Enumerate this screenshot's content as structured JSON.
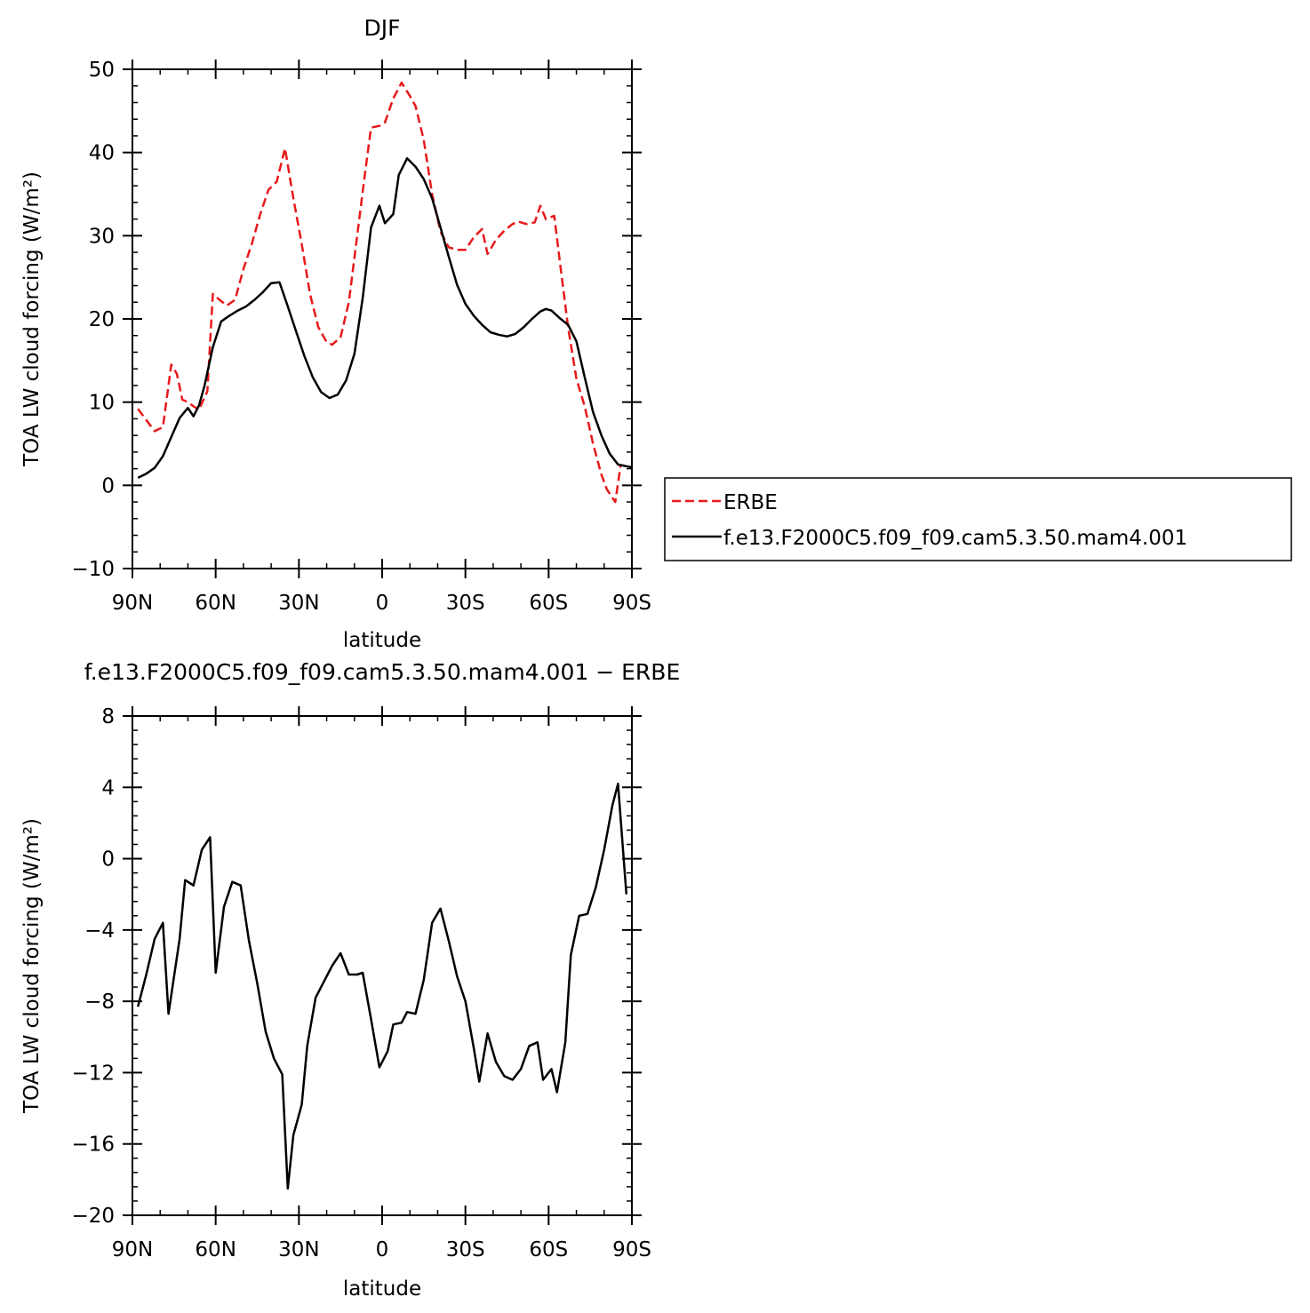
{
  "chart_data": [
    {
      "type": "line",
      "title": "DJF",
      "xlabel": "latitude",
      "ylabel": "TOA LW cloud forcing (W/m²)",
      "xlim": [
        -90,
        90
      ],
      "ylim": [
        -10,
        50
      ],
      "xticks": [
        {
          "value": -90,
          "label": "90N"
        },
        {
          "value": -60,
          "label": "60N"
        },
        {
          "value": -30,
          "label": "30N"
        },
        {
          "value": 0,
          "label": "0"
        },
        {
          "value": 30,
          "label": "30S"
        },
        {
          "value": 60,
          "label": "60S"
        },
        {
          "value": 90,
          "label": "90S"
        }
      ],
      "yticks": [
        -10,
        0,
        10,
        20,
        30,
        40,
        50
      ],
      "legend": {
        "placement": "right"
      },
      "series": [
        {
          "name": "ERBE",
          "color": "#e8191b",
          "dash": "dashed",
          "points": [
            [
              -88,
              9.2
            ],
            [
              -86,
              8.3
            ],
            [
              -82,
              6.5
            ],
            [
              -79,
              7.0
            ],
            [
              -76,
              14.5
            ],
            [
              -74,
              13.4
            ],
            [
              -72,
              10.3
            ],
            [
              -70,
              10.0
            ],
            [
              -68,
              9.5
            ],
            [
              -66,
              9.1
            ],
            [
              -63,
              11.3
            ],
            [
              -61,
              23.0
            ],
            [
              -59,
              22.4
            ],
            [
              -56,
              21.6
            ],
            [
              -53,
              22.3
            ],
            [
              -50,
              26.0
            ],
            [
              -47,
              29.0
            ],
            [
              -44,
              32.5
            ],
            [
              -41,
              35.5
            ],
            [
              -38,
              36.5
            ],
            [
              -35,
              40.5
            ],
            [
              -32,
              34.5
            ],
            [
              -29,
              29.0
            ],
            [
              -26,
              23.0
            ],
            [
              -23,
              19.0
            ],
            [
              -20,
              17.2
            ],
            [
              -18,
              16.9
            ],
            [
              -15,
              17.8
            ],
            [
              -12,
              22.0
            ],
            [
              -9,
              30.0
            ],
            [
              -6,
              38.0
            ],
            [
              -4,
              43.0
            ],
            [
              -1,
              43.2
            ],
            [
              1,
              43.6
            ],
            [
              4,
              46.5
            ],
            [
              7,
              48.4
            ],
            [
              10,
              46.8
            ],
            [
              12,
              45.6
            ],
            [
              15,
              41.5
            ],
            [
              18,
              35.0
            ],
            [
              21,
              30.5
            ],
            [
              24,
              28.6
            ],
            [
              27,
              28.3
            ],
            [
              30,
              28.3
            ],
            [
              33,
              29.8
            ],
            [
              36,
              30.8
            ],
            [
              38,
              27.8
            ],
            [
              41,
              29.5
            ],
            [
              44,
              30.6
            ],
            [
              47,
              31.4
            ],
            [
              49,
              31.7
            ],
            [
              52,
              31.4
            ],
            [
              55,
              31.6
            ],
            [
              57,
              33.6
            ],
            [
              59,
              32.0
            ],
            [
              62,
              32.4
            ],
            [
              64,
              27.0
            ],
            [
              67,
              19.0
            ],
            [
              70,
              12.8
            ],
            [
              73,
              9.5
            ],
            [
              76,
              5.0
            ],
            [
              79,
              1.3
            ],
            [
              81,
              -0.5
            ],
            [
              84,
              -2.0
            ],
            [
              86,
              2.5
            ]
          ]
        },
        {
          "name": "f.e13.F2000C5.f09_f09.cam5.3.50.mam4.001",
          "color": "#000000",
          "dash": "solid",
          "points": [
            [
              -88,
              0.9
            ],
            [
              -85,
              1.4
            ],
            [
              -82,
              2.1
            ],
            [
              -79,
              3.5
            ],
            [
              -76,
              5.8
            ],
            [
              -73,
              8.1
            ],
            [
              -70,
              9.3
            ],
            [
              -68,
              8.3
            ],
            [
              -66,
              9.6
            ],
            [
              -64,
              12.0
            ],
            [
              -61,
              16.6
            ],
            [
              -58,
              19.7
            ],
            [
              -55,
              20.4
            ],
            [
              -52,
              21.0
            ],
            [
              -49,
              21.5
            ],
            [
              -46,
              22.3
            ],
            [
              -43,
              23.2
            ],
            [
              -40,
              24.3
            ],
            [
              -37,
              24.4
            ],
            [
              -34,
              21.5
            ],
            [
              -31,
              18.5
            ],
            [
              -28,
              15.5
            ],
            [
              -25,
              13.0
            ],
            [
              -22,
              11.2
            ],
            [
              -19,
              10.5
            ],
            [
              -16,
              10.9
            ],
            [
              -13,
              12.6
            ],
            [
              -10,
              15.8
            ],
            [
              -7,
              22.5
            ],
            [
              -4,
              31.0
            ],
            [
              -1,
              33.6
            ],
            [
              1,
              31.5
            ],
            [
              4,
              32.6
            ],
            [
              6,
              37.3
            ],
            [
              9,
              39.3
            ],
            [
              12,
              38.3
            ],
            [
              15,
              36.8
            ],
            [
              18,
              34.5
            ],
            [
              21,
              31.0
            ],
            [
              24,
              27.5
            ],
            [
              27,
              24.1
            ],
            [
              30,
              21.8
            ],
            [
              33,
              20.4
            ],
            [
              36,
              19.3
            ],
            [
              39,
              18.4
            ],
            [
              42,
              18.1
            ],
            [
              45,
              17.9
            ],
            [
              48,
              18.2
            ],
            [
              51,
              19.0
            ],
            [
              54,
              20.0
            ],
            [
              57,
              20.9
            ],
            [
              59,
              21.2
            ],
            [
              61,
              21.0
            ],
            [
              64,
              20.1
            ],
            [
              67,
              19.3
            ],
            [
              70,
              17.3
            ],
            [
              73,
              13.0
            ],
            [
              76,
              8.8
            ],
            [
              79,
              6.0
            ],
            [
              82,
              3.8
            ],
            [
              85,
              2.5
            ],
            [
              88,
              2.3
            ],
            [
              91,
              2.1
            ],
            [
              93,
              1.0
            ]
          ]
        }
      ]
    },
    {
      "type": "line",
      "title": "f.e13.F2000C5.f09_f09.cam5.3.50.mam4.001 − ERBE",
      "xlabel": "latitude",
      "ylabel": "TOA LW cloud forcing (W/m²)",
      "xlim": [
        -90,
        90
      ],
      "ylim": [
        -20,
        8
      ],
      "xticks": [
        {
          "value": -90,
          "label": "90N"
        },
        {
          "value": -60,
          "label": "60N"
        },
        {
          "value": -30,
          "label": "30N"
        },
        {
          "value": 0,
          "label": "0"
        },
        {
          "value": 30,
          "label": "30S"
        },
        {
          "value": 60,
          "label": "60S"
        },
        {
          "value": 90,
          "label": "90S"
        }
      ],
      "yticks": [
        -20,
        -16,
        -12,
        -8,
        -4,
        0,
        4,
        8
      ],
      "series": [
        {
          "color": "#000000",
          "dash": "solid",
          "points": [
            [
              -88,
              -8.3
            ],
            [
              -85,
              -6.5
            ],
            [
              -82,
              -4.5
            ],
            [
              -79,
              -3.6
            ],
            [
              -77,
              -8.7
            ],
            [
              -73,
              -4.5
            ],
            [
              -71,
              -1.2
            ],
            [
              -68,
              -1.5
            ],
            [
              -65,
              0.5
            ],
            [
              -62,
              1.2
            ],
            [
              -60,
              -6.4
            ],
            [
              -57,
              -2.7
            ],
            [
              -54,
              -1.3
            ],
            [
              -51,
              -1.5
            ],
            [
              -48,
              -4.6
            ],
            [
              -45,
              -7.0
            ],
            [
              -42,
              -9.7
            ],
            [
              -39,
              -11.2
            ],
            [
              -36,
              -12.1
            ],
            [
              -34,
              -18.5
            ],
            [
              -32,
              -15.5
            ],
            [
              -29,
              -13.8
            ],
            [
              -27,
              -10.5
            ],
            [
              -24,
              -7.8
            ],
            [
              -21,
              -6.9
            ],
            [
              -18,
              -6.0
            ],
            [
              -15,
              -5.3
            ],
            [
              -12,
              -6.5
            ],
            [
              -9,
              -6.5
            ],
            [
              -7,
              -6.4
            ],
            [
              -4,
              -9.0
            ],
            [
              -1,
              -11.7
            ],
            [
              2,
              -10.8
            ],
            [
              4,
              -9.3
            ],
            [
              7,
              -9.2
            ],
            [
              9,
              -8.6
            ],
            [
              12,
              -8.7
            ],
            [
              15,
              -6.8
            ],
            [
              18,
              -3.6
            ],
            [
              21,
              -2.8
            ],
            [
              24,
              -4.6
            ],
            [
              27,
              -6.6
            ],
            [
              30,
              -8.0
            ],
            [
              33,
              -10.6
            ],
            [
              35,
              -12.5
            ],
            [
              38,
              -9.8
            ],
            [
              41,
              -11.4
            ],
            [
              44,
              -12.2
            ],
            [
              47,
              -12.4
            ],
            [
              50,
              -11.8
            ],
            [
              53,
              -10.5
            ],
            [
              56,
              -10.3
            ],
            [
              58,
              -12.4
            ],
            [
              61,
              -11.8
            ],
            [
              63,
              -13.1
            ],
            [
              66,
              -10.3
            ],
            [
              68,
              -5.4
            ],
            [
              71,
              -3.2
            ],
            [
              74,
              -3.1
            ],
            [
              77,
              -1.6
            ],
            [
              80,
              0.5
            ],
            [
              83,
              3.0
            ],
            [
              85,
              4.2
            ],
            [
              88,
              -2.0
            ]
          ]
        }
      ]
    }
  ]
}
